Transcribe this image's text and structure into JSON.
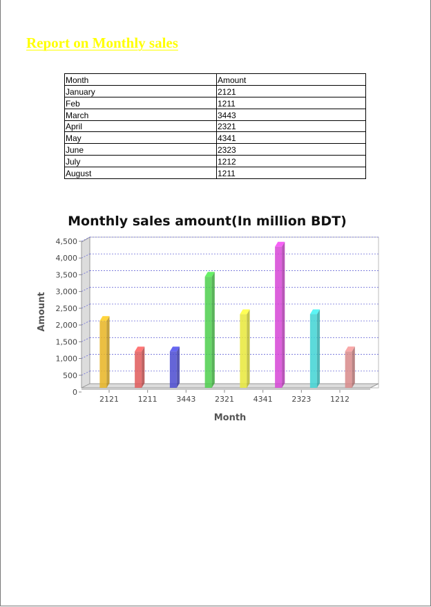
{
  "report_title": "Report on Monthly sales",
  "table": {
    "headers": [
      "Month",
      "Amount"
    ],
    "rows": [
      [
        "January",
        "2121"
      ],
      [
        "Feb",
        "1211"
      ],
      [
        "March",
        "3443"
      ],
      [
        "April",
        "2321"
      ],
      [
        "May",
        "4341"
      ],
      [
        "June",
        "2323"
      ],
      [
        "July",
        "1212"
      ],
      [
        "August",
        "1211"
      ]
    ]
  },
  "chart_data": {
    "type": "bar",
    "title": "Monthly sales amount(In million BDT)",
    "xlabel": "Month",
    "ylabel": "Amount",
    "categories": [
      "2121",
      "1211",
      "1211",
      "3443",
      "2321",
      "4341",
      "2323",
      "1212"
    ],
    "x_tick_labels": [
      "2121",
      "1211",
      "3443",
      "2321",
      "4341",
      "2323",
      "1212"
    ],
    "values": [
      2121,
      1211,
      1211,
      3443,
      2321,
      4341,
      2323,
      1212
    ],
    "colors": [
      "#e8b422",
      "#e05a5a",
      "#4a4ad0",
      "#4ccf4c",
      "#e8e83a",
      "#d645d6",
      "#40d4d4",
      "#d88a8a"
    ],
    "ylim": [
      0,
      4500
    ],
    "y_ticks": [
      "0",
      "500",
      "1,000",
      "1,500",
      "2,000",
      "2,500",
      "3,000",
      "3,500",
      "4,000",
      "4,500"
    ],
    "grid": true,
    "style": "3d"
  }
}
